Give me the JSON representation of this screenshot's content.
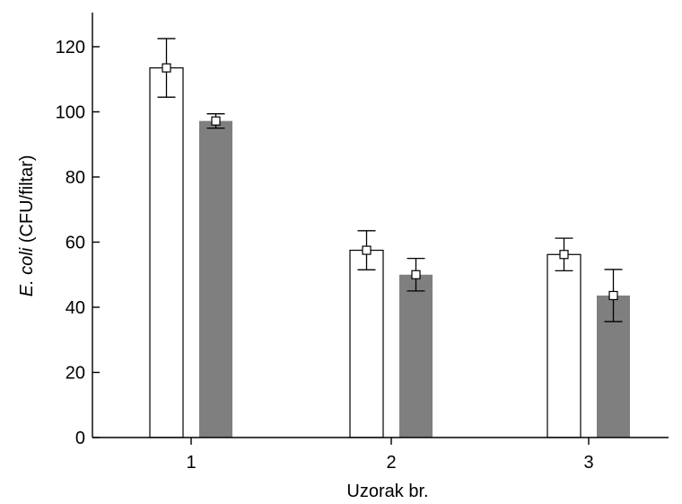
{
  "chart_data": {
    "type": "bar",
    "title": "",
    "xlabel": "Uzorak br.",
    "ylabel_italic": "E. coli",
    "ylabel_rest": " (CFU/filtar)",
    "categories": [
      "1",
      "2",
      "3"
    ],
    "ylim": [
      0,
      130
    ],
    "yticks": [
      0,
      20,
      40,
      60,
      80,
      100,
      120
    ],
    "grid": false,
    "legend": "none",
    "series": [
      {
        "color": "#ffffff",
        "values": [
          113.5,
          57.5,
          56.2
        ],
        "errors": [
          9,
          6,
          5
        ]
      },
      {
        "color": "#7f7f7f",
        "values": [
          97.2,
          50,
          43.6
        ],
        "errors": [
          2.2,
          5,
          8
        ]
      }
    ]
  }
}
